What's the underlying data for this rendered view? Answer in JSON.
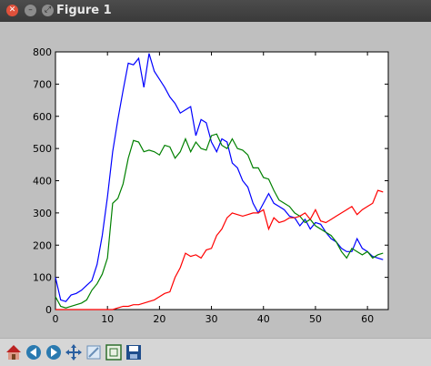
{
  "window": {
    "title": "Figure 1",
    "close_glyph": "✕",
    "min_glyph": "–",
    "max_glyph": "⤢"
  },
  "toolbar": {
    "tools": [
      {
        "name": "home-icon"
      },
      {
        "name": "back-icon"
      },
      {
        "name": "forward-icon"
      },
      {
        "name": "pan-icon"
      },
      {
        "name": "zoom-icon"
      },
      {
        "name": "subplots-icon"
      },
      {
        "name": "save-icon"
      }
    ]
  },
  "colors": {
    "blue": "#0000ff",
    "green": "#008000",
    "red": "#ff0000"
  },
  "chart_data": {
    "type": "line",
    "x": [
      0,
      1,
      2,
      3,
      4,
      5,
      6,
      7,
      8,
      9,
      10,
      11,
      12,
      13,
      14,
      15,
      16,
      17,
      18,
      19,
      20,
      21,
      22,
      23,
      24,
      25,
      26,
      27,
      28,
      29,
      30,
      31,
      32,
      33,
      34,
      35,
      36,
      37,
      38,
      39,
      40,
      41,
      42,
      43,
      44,
      45,
      46,
      47,
      48,
      49,
      50,
      51,
      52,
      53,
      54,
      55,
      56,
      57,
      58,
      59,
      60,
      61,
      62,
      63
    ],
    "xlim": [
      0,
      64
    ],
    "ylim": [
      0,
      800
    ],
    "xticks": [
      "0",
      "10",
      "20",
      "30",
      "40",
      "50",
      "60"
    ],
    "yticks": [
      "0",
      "100",
      "200",
      "300",
      "400",
      "500",
      "600",
      "700",
      "800"
    ],
    "grid": false,
    "series": [
      {
        "color": "#0000ff",
        "values": [
          100,
          30,
          25,
          45,
          50,
          60,
          75,
          90,
          140,
          230,
          350,
          490,
          590,
          680,
          765,
          760,
          780,
          690,
          795,
          740,
          715,
          690,
          660,
          640,
          610,
          620,
          630,
          540,
          590,
          580,
          520,
          490,
          530,
          520,
          455,
          440,
          400,
          380,
          330,
          300,
          330,
          360,
          330,
          320,
          310,
          290,
          285,
          260,
          280,
          250,
          270,
          265,
          240,
          220,
          210,
          190,
          180,
          180,
          220,
          190,
          180,
          165,
          160,
          155
        ]
      },
      {
        "color": "#008000",
        "values": [
          40,
          10,
          5,
          10,
          15,
          20,
          30,
          60,
          80,
          110,
          160,
          330,
          345,
          390,
          470,
          525,
          520,
          490,
          495,
          490,
          480,
          510,
          505,
          470,
          490,
          530,
          490,
          520,
          500,
          495,
          540,
          545,
          510,
          500,
          530,
          500,
          495,
          480,
          440,
          440,
          410,
          405,
          370,
          340,
          330,
          320,
          300,
          290,
          270,
          280,
          260,
          250,
          240,
          230,
          210,
          180,
          160,
          190,
          180,
          170,
          180,
          160,
          170,
          175
        ]
      },
      {
        "color": "#ff0000",
        "values": [
          0,
          0,
          0,
          0,
          0,
          0,
          0,
          0,
          0,
          0,
          0,
          0,
          5,
          10,
          10,
          15,
          15,
          20,
          25,
          30,
          40,
          50,
          55,
          100,
          130,
          175,
          165,
          170,
          160,
          185,
          190,
          230,
          250,
          285,
          300,
          295,
          290,
          295,
          300,
          300,
          310,
          250,
          285,
          270,
          275,
          285,
          285,
          290,
          300,
          280,
          310,
          275,
          270,
          280,
          290,
          300,
          310,
          320,
          295,
          310,
          320,
          330,
          370,
          365
        ]
      }
    ]
  }
}
